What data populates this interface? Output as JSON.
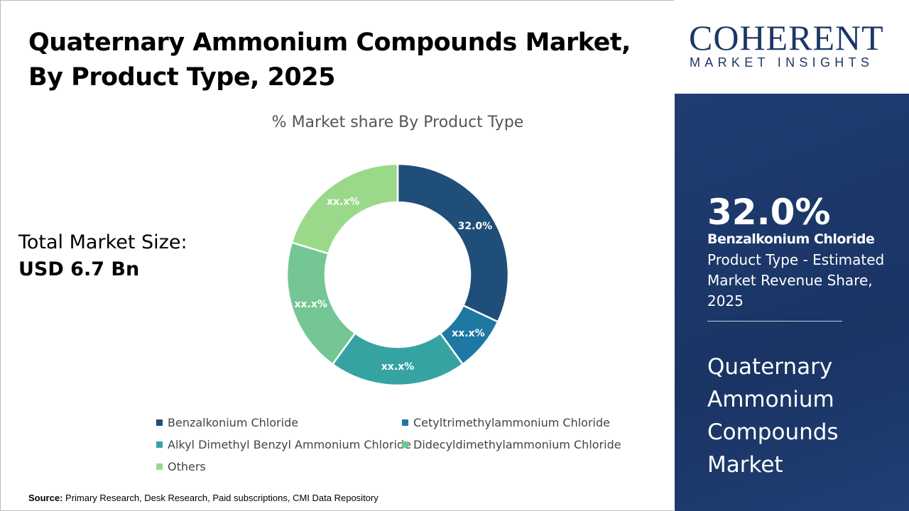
{
  "header": {
    "title": "Quaternary Ammonium Compounds Market, By Product Type, 2025"
  },
  "total_market": {
    "label": "Total Market Size:",
    "value": "USD 6.7 Bn"
  },
  "chart_data": {
    "type": "pie",
    "donut": true,
    "title": "% Market share By Product Type",
    "categories": [
      "Benzalkonium Chloride",
      "Cetyltrimethylammonium Chloride",
      "Alkyl Dimethyl Benzyl Ammonium Chloride",
      "Didecyldimethylammonium Chloride",
      "Others"
    ],
    "values": [
      32.0,
      8.0,
      20.0,
      19.7,
      20.3
    ],
    "data_labels": [
      "32.0%",
      "xx.x%",
      "xx.x%",
      "xx.x%",
      "xx.x%"
    ],
    "colors": [
      "#1f4e79",
      "#1f78a4",
      "#36a3a3",
      "#74c794",
      "#9bd98a"
    ],
    "legend_position": "bottom"
  },
  "source": {
    "label": "Source:",
    "text": "Primary Research, Desk Research, Paid subscriptions, CMI Data Repository"
  },
  "logo": {
    "main": "COHERENT",
    "sub": "MARKET INSIGHTS"
  },
  "panel": {
    "percent": "32.0%",
    "segment": "Benzalkonium Chloride",
    "description": "Product Type - Estimated Market Revenue Share, 2025",
    "market": "Quaternary Ammonium Compounds Market",
    "background": "#1e3a6b"
  }
}
